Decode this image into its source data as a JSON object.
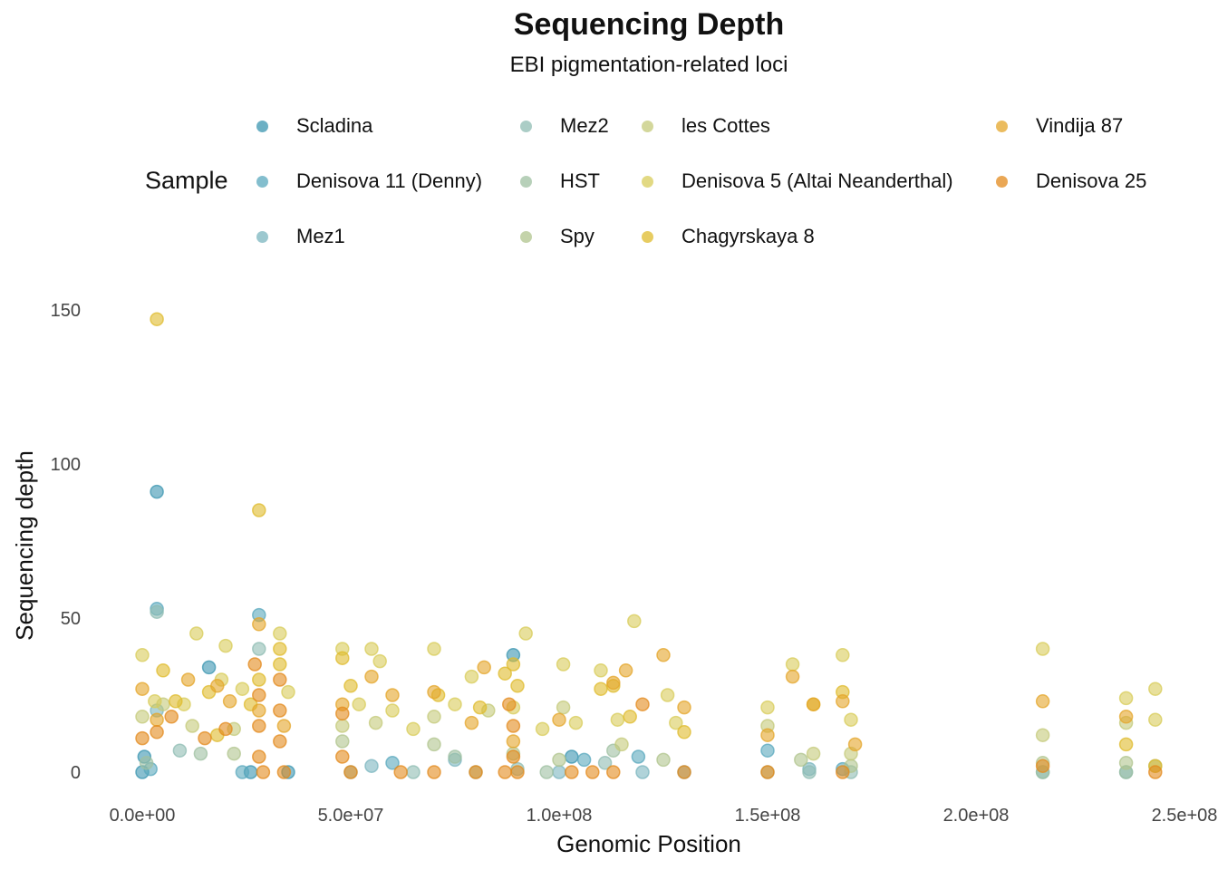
{
  "chart_data": {
    "type": "scatter",
    "title": "Sequencing Depth",
    "subtitle": "EBI pigmentation-related loci",
    "xlabel": "Genomic Position",
    "ylabel": "Sequencing depth",
    "xlim": [
      0,
      250000000
    ],
    "ylim": [
      0,
      150
    ],
    "x_ticks": [
      0,
      50000000,
      100000000,
      150000000,
      200000000,
      250000000
    ],
    "x_tick_labels": [
      "0.0e+00",
      "5.0e+07",
      "1.0e+08",
      "1.5e+08",
      "2.0e+08",
      "2.5e+08"
    ],
    "y_ticks": [
      0,
      50,
      100,
      150
    ],
    "y_tick_labels": [
      "0",
      "50",
      "100",
      "150"
    ],
    "grid": false,
    "legend_title": "Sample",
    "legend_position": "top",
    "series": [
      {
        "name": "Scladina",
        "color": "#3b95b0",
        "points": [
          [
            3500000,
            91
          ],
          [
            16000000,
            34
          ],
          [
            500000,
            5
          ],
          [
            26000000,
            0
          ],
          [
            89000000,
            38
          ],
          [
            103000000,
            5
          ],
          [
            35000000,
            0
          ],
          [
            0,
            0
          ]
        ]
      },
      {
        "name": "Denisova 11 (Denny)",
        "color": "#5aa8bd",
        "points": [
          [
            3500000,
            53
          ],
          [
            28000000,
            51
          ],
          [
            60000000,
            3
          ],
          [
            106000000,
            4
          ],
          [
            119000000,
            5
          ],
          [
            150000000,
            7
          ],
          [
            2000000,
            1
          ],
          [
            24000000,
            0
          ],
          [
            168000000,
            1
          ]
        ]
      },
      {
        "name": "Mez1",
        "color": "#7bb5bf",
        "points": [
          [
            3500000,
            20
          ],
          [
            55000000,
            2
          ],
          [
            75000000,
            4
          ],
          [
            100000000,
            0
          ],
          [
            120000000,
            0
          ],
          [
            130000000,
            0
          ],
          [
            160000000,
            1
          ],
          [
            216000000,
            0
          ],
          [
            236000000,
            0
          ]
        ]
      },
      {
        "name": "Mez2",
        "color": "#8fbcb3",
        "points": [
          [
            3500000,
            52
          ],
          [
            9000000,
            7
          ],
          [
            28000000,
            40
          ],
          [
            50000000,
            0
          ],
          [
            65000000,
            0
          ],
          [
            90000000,
            1
          ],
          [
            111000000,
            3
          ],
          [
            160000000,
            0
          ],
          [
            170000000,
            0
          ]
        ]
      },
      {
        "name": "HST",
        "color": "#9fc0a2",
        "points": [
          [
            1000000,
            3
          ],
          [
            14000000,
            6
          ],
          [
            75000000,
            5
          ],
          [
            80000000,
            0
          ],
          [
            97000000,
            0
          ],
          [
            113000000,
            7
          ],
          [
            150000000,
            0
          ],
          [
            216000000,
            0
          ],
          [
            236000000,
            0
          ],
          [
            243000000,
            2
          ]
        ]
      },
      {
        "name": "Spy",
        "color": "#b0c48d",
        "points": [
          [
            22000000,
            6
          ],
          [
            48000000,
            10
          ],
          [
            70000000,
            9
          ],
          [
            89000000,
            6
          ],
          [
            100000000,
            4
          ],
          [
            125000000,
            4
          ],
          [
            158000000,
            4
          ],
          [
            170000000,
            2
          ],
          [
            216000000,
            3
          ],
          [
            236000000,
            3
          ]
        ]
      },
      {
        "name": "les Cottes",
        "color": "#c4c97a",
        "points": [
          [
            0,
            18
          ],
          [
            5000000,
            22
          ],
          [
            12000000,
            15
          ],
          [
            22000000,
            14
          ],
          [
            48000000,
            15
          ],
          [
            56000000,
            16
          ],
          [
            70000000,
            18
          ],
          [
            83000000,
            20
          ],
          [
            101000000,
            21
          ],
          [
            115000000,
            9
          ],
          [
            150000000,
            15
          ],
          [
            161000000,
            6
          ],
          [
            170000000,
            6
          ],
          [
            216000000,
            12
          ],
          [
            236000000,
            16
          ]
        ]
      },
      {
        "name": "Denisova 5 (Altai Neanderthal)",
        "color": "#d8cc5a",
        "points": [
          [
            0,
            38
          ],
          [
            3000000,
            23
          ],
          [
            10000000,
            22
          ],
          [
            13000000,
            45
          ],
          [
            19000000,
            30
          ],
          [
            20000000,
            41
          ],
          [
            24000000,
            27
          ],
          [
            33000000,
            45
          ],
          [
            35000000,
            26
          ],
          [
            48000000,
            40
          ],
          [
            52000000,
            22
          ],
          [
            55000000,
            40
          ],
          [
            57000000,
            36
          ],
          [
            60000000,
            20
          ],
          [
            65000000,
            14
          ],
          [
            70000000,
            40
          ],
          [
            75000000,
            22
          ],
          [
            79000000,
            31
          ],
          [
            89000000,
            21
          ],
          [
            92000000,
            45
          ],
          [
            96000000,
            14
          ],
          [
            101000000,
            35
          ],
          [
            104000000,
            16
          ],
          [
            110000000,
            33
          ],
          [
            114000000,
            17
          ],
          [
            118000000,
            49
          ],
          [
            126000000,
            25
          ],
          [
            128000000,
            16
          ],
          [
            150000000,
            21
          ],
          [
            156000000,
            35
          ],
          [
            168000000,
            38
          ],
          [
            170000000,
            17
          ],
          [
            216000000,
            40
          ],
          [
            236000000,
            24
          ],
          [
            243000000,
            27
          ],
          [
            243000000,
            17
          ]
        ]
      },
      {
        "name": "Chagyrskaya 8",
        "color": "#dfbb2c",
        "points": [
          [
            3500000,
            147
          ],
          [
            5000000,
            33
          ],
          [
            8000000,
            23
          ],
          [
            16000000,
            26
          ],
          [
            18000000,
            12
          ],
          [
            26000000,
            22
          ],
          [
            28000000,
            85
          ],
          [
            28000000,
            30
          ],
          [
            33000000,
            40
          ],
          [
            33000000,
            35
          ],
          [
            48000000,
            37
          ],
          [
            50000000,
            28
          ],
          [
            71000000,
            25
          ],
          [
            81000000,
            21
          ],
          [
            87000000,
            32
          ],
          [
            89000000,
            35
          ],
          [
            90000000,
            28
          ],
          [
            110000000,
            27
          ],
          [
            113000000,
            28
          ],
          [
            117000000,
            18
          ],
          [
            130000000,
            13
          ],
          [
            161000000,
            22
          ],
          [
            168000000,
            26
          ],
          [
            236000000,
            9
          ],
          [
            243000000,
            2
          ]
        ]
      },
      {
        "name": "Vindija 87",
        "color": "#e4a52a",
        "points": [
          [
            0,
            27
          ],
          [
            3500000,
            17
          ],
          [
            11000000,
            30
          ],
          [
            18000000,
            28
          ],
          [
            21000000,
            23
          ],
          [
            28000000,
            48
          ],
          [
            28000000,
            20
          ],
          [
            34000000,
            15
          ],
          [
            48000000,
            22
          ],
          [
            55000000,
            31
          ],
          [
            60000000,
            25
          ],
          [
            70000000,
            26
          ],
          [
            79000000,
            16
          ],
          [
            82000000,
            34
          ],
          [
            89000000,
            10
          ],
          [
            100000000,
            17
          ],
          [
            113000000,
            29
          ],
          [
            116000000,
            33
          ],
          [
            125000000,
            38
          ],
          [
            130000000,
            21
          ],
          [
            150000000,
            12
          ],
          [
            156000000,
            31
          ],
          [
            161000000,
            22
          ],
          [
            168000000,
            23
          ],
          [
            171000000,
            9
          ],
          [
            216000000,
            23
          ],
          [
            236000000,
            18
          ]
        ]
      },
      {
        "name": "Denisova 25",
        "color": "#e38a1c",
        "points": [
          [
            0,
            11
          ],
          [
            3500000,
            13
          ],
          [
            7000000,
            18
          ],
          [
            15000000,
            11
          ],
          [
            20000000,
            14
          ],
          [
            27000000,
            35
          ],
          [
            28000000,
            25
          ],
          [
            28000000,
            15
          ],
          [
            28000000,
            5
          ],
          [
            29000000,
            0
          ],
          [
            33000000,
            30
          ],
          [
            33000000,
            20
          ],
          [
            33000000,
            10
          ],
          [
            34000000,
            0
          ],
          [
            48000000,
            19
          ],
          [
            48000000,
            5
          ],
          [
            50000000,
            0
          ],
          [
            62000000,
            0
          ],
          [
            70000000,
            0
          ],
          [
            80000000,
            0
          ],
          [
            87000000,
            0
          ],
          [
            88000000,
            22
          ],
          [
            89000000,
            15
          ],
          [
            89000000,
            5
          ],
          [
            90000000,
            0
          ],
          [
            103000000,
            0
          ],
          [
            108000000,
            0
          ],
          [
            113000000,
            0
          ],
          [
            120000000,
            22
          ],
          [
            130000000,
            0
          ],
          [
            150000000,
            0
          ],
          [
            168000000,
            0
          ],
          [
            216000000,
            2
          ],
          [
            243000000,
            0
          ]
        ]
      }
    ]
  }
}
